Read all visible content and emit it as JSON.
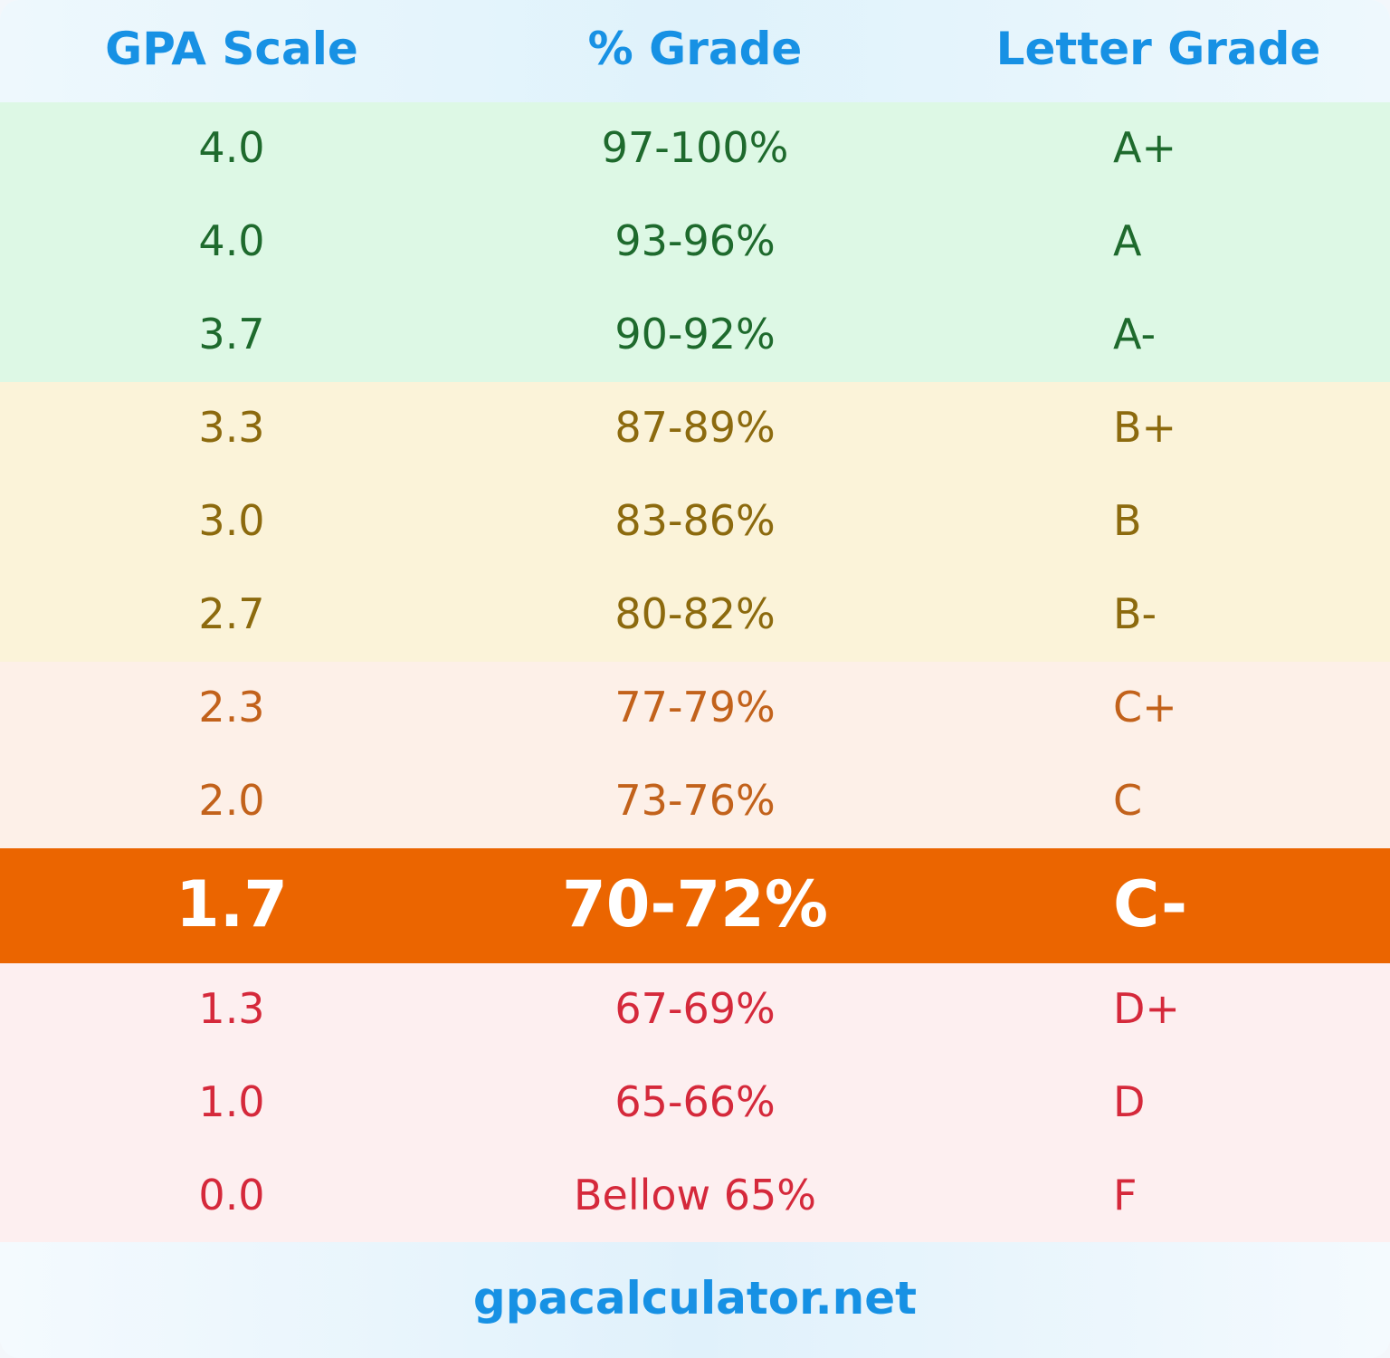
{
  "headers": {
    "gpa": "GPA Scale",
    "percent": "% Grade",
    "letter": "Letter Grade"
  },
  "colors": {
    "header_text": "#1791e4",
    "tier_a_bg": "#ddf8e5",
    "tier_a_text": "#1e6a2d",
    "tier_b_bg": "#fbf3d9",
    "tier_b_text": "#8c6a0e",
    "tier_c_bg": "#fdf0e8",
    "tier_c_text": "#c2621b",
    "highlight_bg": "#eb6500",
    "highlight_text": "#ffffff",
    "tier_d_bg": "#fdeff0",
    "tier_d_text": "#d5293b"
  },
  "rows": [
    {
      "gpa": "4.0",
      "percent": "97-100%",
      "letter": "A+",
      "tier": "a"
    },
    {
      "gpa": "4.0",
      "percent": "93-96%",
      "letter": "A",
      "tier": "a"
    },
    {
      "gpa": "3.7",
      "percent": "90-92%",
      "letter": "A-",
      "tier": "a"
    },
    {
      "gpa": "3.3",
      "percent": "87-89%",
      "letter": "B+",
      "tier": "b"
    },
    {
      "gpa": "3.0",
      "percent": "83-86%",
      "letter": "B",
      "tier": "b"
    },
    {
      "gpa": "2.7",
      "percent": "80-82%",
      "letter": "B-",
      "tier": "b"
    },
    {
      "gpa": "2.3",
      "percent": "77-79%",
      "letter": "C+",
      "tier": "c"
    },
    {
      "gpa": "2.0",
      "percent": "73-76%",
      "letter": "C",
      "tier": "c"
    },
    {
      "gpa": "1.7",
      "percent": "70-72%",
      "letter": "C-",
      "tier": "highlight"
    },
    {
      "gpa": "1.3",
      "percent": "67-69%",
      "letter": "D+",
      "tier": "d"
    },
    {
      "gpa": "1.0",
      "percent": "65-66%",
      "letter": "D",
      "tier": "d"
    },
    {
      "gpa": "0.0",
      "percent": "Bellow 65%",
      "letter": "F",
      "tier": "d"
    }
  ],
  "footer": {
    "site": "gpacalculator.net"
  }
}
